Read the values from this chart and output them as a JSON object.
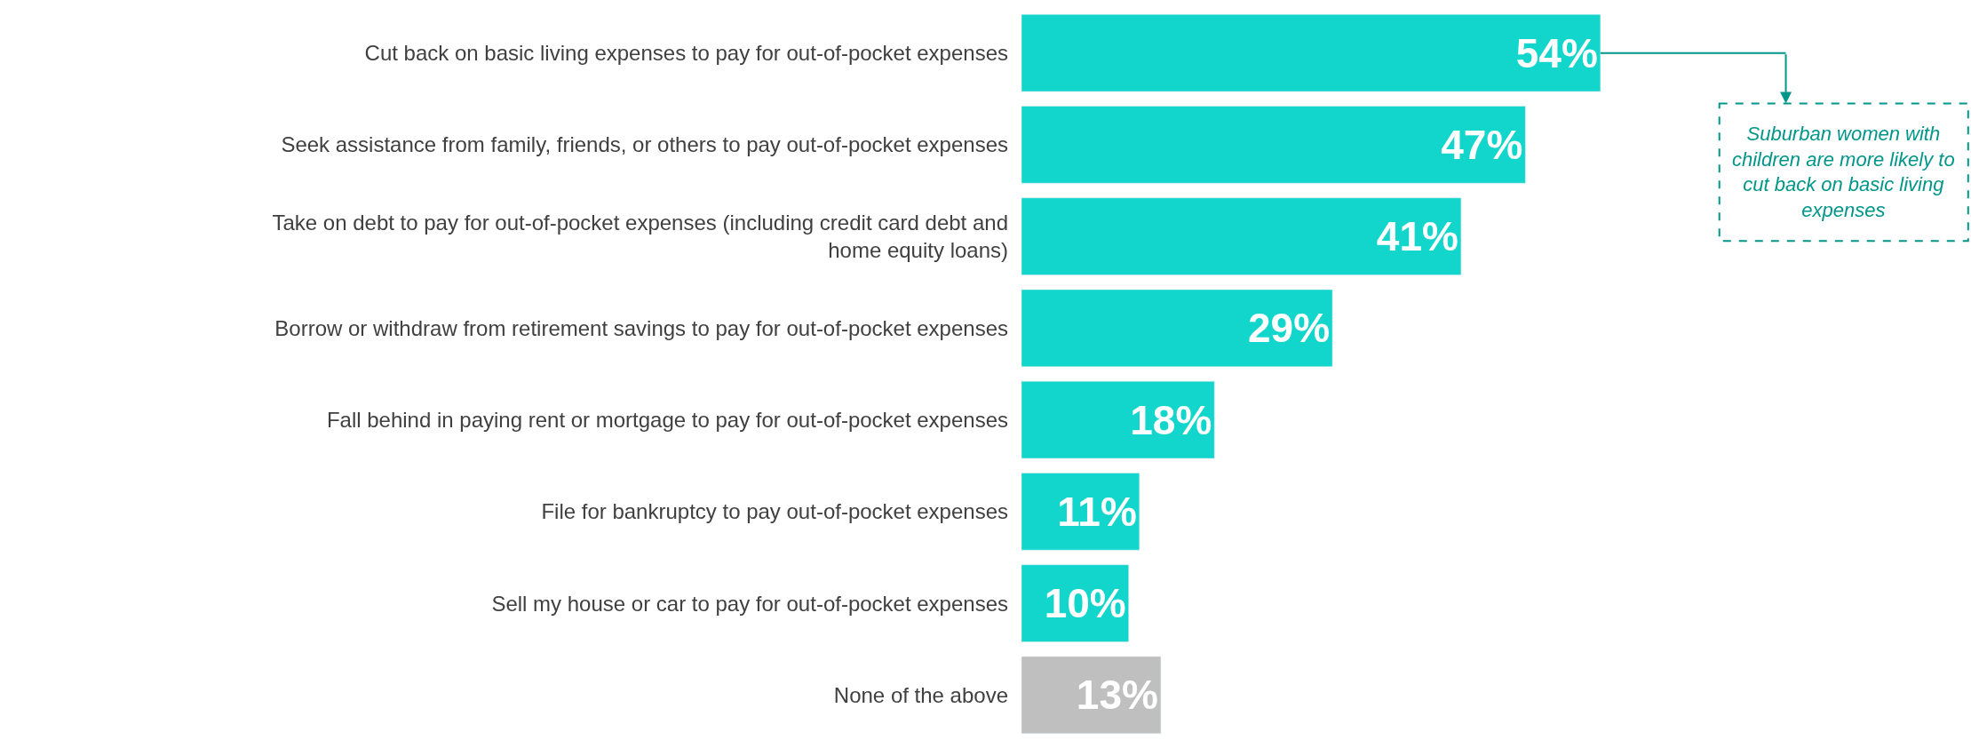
{
  "chart_data": {
    "type": "bar",
    "orientation": "horizontal",
    "categories": [
      "Cut back on basic living expenses to pay for out-of-pocket expenses",
      "Seek assistance from family, friends, or others to pay out-of-pocket expenses",
      "Take on debt to pay for out-of-pocket expenses (including credit card debt and home equity loans)",
      "Borrow or withdraw from retirement savings to pay for out-of-pocket expenses",
      "Fall behind in paying rent or mortgage to pay for out-of-pocket expenses",
      "File for bankruptcy to pay out-of-pocket expenses",
      "Sell my house or car to pay for out-of-pocket expenses",
      "None of the above"
    ],
    "values": [
      54,
      47,
      41,
      29,
      18,
      11,
      10,
      13
    ],
    "value_labels": [
      "54%",
      "47%",
      "41%",
      "29%",
      "18%",
      "11%",
      "10%",
      "13%"
    ],
    "colors": [
      "#12d6cc",
      "#12d6cc",
      "#12d6cc",
      "#12d6cc",
      "#12d6cc",
      "#12d6cc",
      "#12d6cc",
      "#bfbfbf"
    ],
    "annotations": [
      "Suburban women with children are more likely to cut back on basic living expenses"
    ],
    "legend": false
  }
}
